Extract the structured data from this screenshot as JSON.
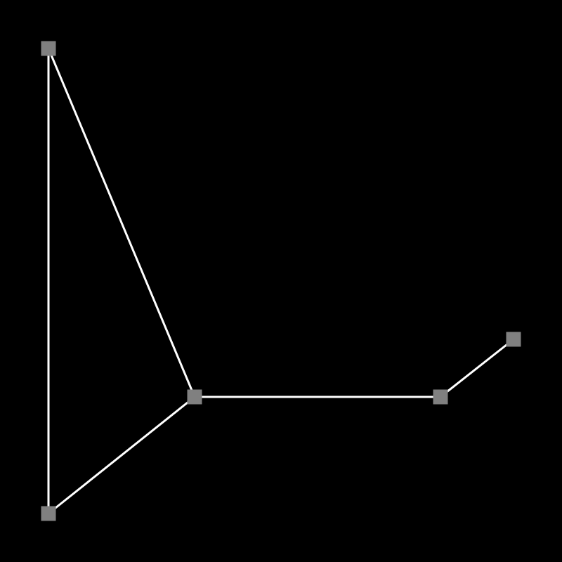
{
  "graph": {
    "nodes": [
      {
        "id": "n1"
      },
      {
        "id": "n2"
      },
      {
        "id": "n3"
      },
      {
        "id": "n4"
      },
      {
        "id": "n5"
      }
    ],
    "edges": [
      {
        "from": "n1",
        "to": "n2"
      },
      {
        "from": "n1",
        "to": "n3"
      },
      {
        "from": "n2",
        "to": "n3"
      },
      {
        "from": "n2",
        "to": "n4"
      },
      {
        "from": "n4",
        "to": "n5"
      }
    ]
  },
  "colors": {
    "background": "#000000",
    "edge": "#ffffff",
    "node": "#808080"
  }
}
